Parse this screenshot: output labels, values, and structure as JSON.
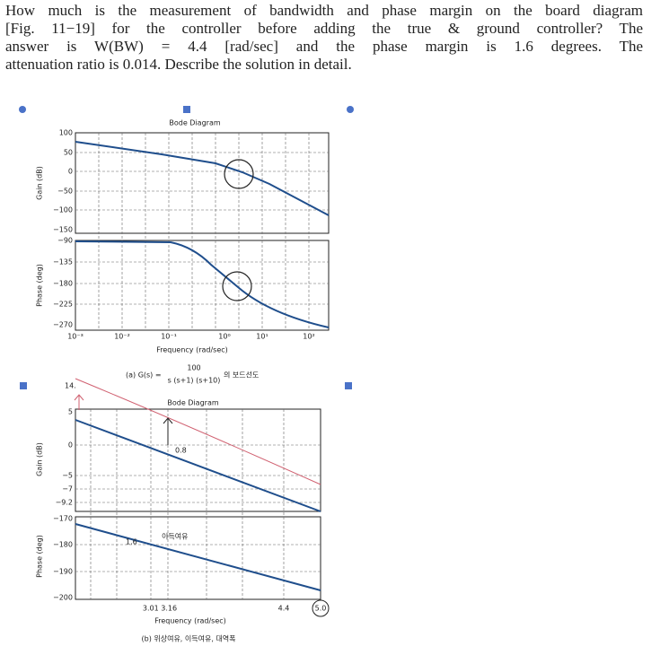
{
  "question": {
    "lines": [
      "How much is the measurement of bandwidth and phase margin on the board diagram",
      "[Fig. 11−19] for the controller before adding the true & ground controller? The",
      "answer is W(BW) = 4.4 [rad/sec] and the phase margin is 1.6 degrees. The",
      "attenuation ratio is 0.014. Describe the solution in detail."
    ]
  },
  "figure_a": {
    "title": "Bode Diagram",
    "gain_label": "Gain (dB)",
    "phase_label": "Phase (deg)",
    "gain_ticks": [
      "100",
      "50",
      "0",
      "−50",
      "−100",
      "−150"
    ],
    "phase_ticks": [
      "−90",
      "−135",
      "−180",
      "−225",
      "−270"
    ],
    "x_ticks": [
      "10⁻³",
      "10⁻²",
      "10⁻¹",
      "10⁰",
      "10¹",
      "10²"
    ],
    "x_label": "Frequency (rad/sec)",
    "caption": {
      "prefix": "(a) G(s) =",
      "numerator": "100",
      "denominator": "s (s+1) (s+10)",
      "suffix": "의 보드선도"
    }
  },
  "figure_b": {
    "title": "Bode Diagram",
    "gain_label": "Gain (dB)",
    "phase_label": "Phase (deg)",
    "gain_ticks": [
      "5",
      "0",
      "−5",
      "−7",
      "−9.2"
    ],
    "phase_ticks": [
      "−170",
      "−180",
      "−190",
      "−200"
    ],
    "x_ticks": [
      "3.01 3.16",
      "4.4",
      "5.0"
    ],
    "annotations": [
      "0.8",
      "1.6",
      "14.",
      "이득여유"
    ],
    "x_label": "Frequency (rad/sec)",
    "caption": "(b) 위상여유, 이득여유, 대역폭"
  }
}
